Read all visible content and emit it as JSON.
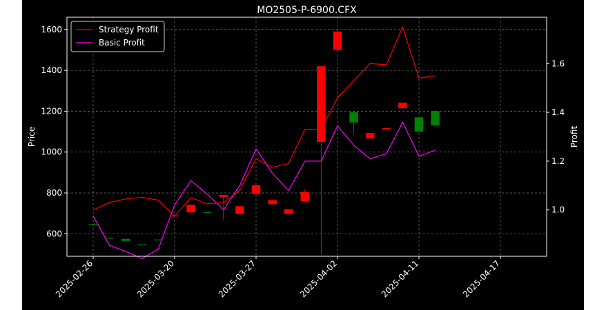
{
  "chart_data": {
    "type": "candlestick",
    "title": "MO2505-P-6900.CFX",
    "xlabel": "",
    "ylabel": "Price",
    "y2label": "Profit",
    "ylim": [
      490,
      1660
    ],
    "y2lim": [
      0.81,
      1.79
    ],
    "yticks": [
      600,
      800,
      1000,
      1200,
      1400,
      1600
    ],
    "y2ticks": [
      1.0,
      1.2,
      1.4,
      1.6
    ],
    "xtick_labels": [
      "2025-02-26",
      "2025-03-20",
      "2025-03-27",
      "2025-04-02",
      "2025-04-11",
      "2025-04-17"
    ],
    "xtick_indices": [
      0,
      5,
      10,
      15,
      20,
      25
    ],
    "grid": true,
    "legend_position": "top-left",
    "colors": {
      "background": "#000000",
      "axes": "#ffffff",
      "text": "#ffffff",
      "up": "#008000",
      "down": "#ff0000",
      "grid": "#6b6b6b",
      "strategy": "#ff0000",
      "basic": "#ff00ff"
    },
    "candles": [
      {
        "open": 648,
        "high": 648,
        "low": 648,
        "close": 648
      },
      {
        "open": 580,
        "high": 580,
        "low": 580,
        "close": 580
      },
      {
        "open": 565,
        "high": 575,
        "low": 562,
        "close": 575
      },
      {
        "open": 548,
        "high": 548,
        "low": 548,
        "close": 548
      },
      {
        "open": 572,
        "high": 572,
        "low": 572,
        "close": 572
      },
      {
        "open": 690,
        "high": 690,
        "low": 685,
        "close": 685
      },
      {
        "open": 742,
        "high": 742,
        "low": 705,
        "close": 705
      },
      {
        "open": 707,
        "high": 707,
        "low": 707,
        "close": 707
      },
      {
        "open": 790,
        "high": 790,
        "low": 670,
        "close": 780
      },
      {
        "open": 735,
        "high": 735,
        "low": 697,
        "close": 697
      },
      {
        "open": 838,
        "high": 838,
        "low": 785,
        "close": 795
      },
      {
        "open": 765,
        "high": 765,
        "low": 745,
        "close": 745
      },
      {
        "open": 720,
        "high": 720,
        "low": 697,
        "close": 697
      },
      {
        "open": 805,
        "high": 820,
        "low": 755,
        "close": 758
      },
      {
        "open": 1420,
        "high": 1420,
        "low": 500,
        "close": 1050
      },
      {
        "open": 1590,
        "high": 1590,
        "low": 1500,
        "close": 1500
      },
      {
        "open": 1145,
        "high": 1200,
        "low": 1090,
        "close": 1195
      },
      {
        "open": 1093,
        "high": 1093,
        "low": 1067,
        "close": 1067
      },
      {
        "open": 1117,
        "high": 1117,
        "low": 1115,
        "close": 1115
      },
      {
        "open": 1242,
        "high": 1242,
        "low": 1215,
        "close": 1215
      },
      {
        "open": 1100,
        "high": 1170,
        "low": 1100,
        "close": 1170
      },
      {
        "open": 1130,
        "high": 1205,
        "low": 1130,
        "close": 1200
      }
    ],
    "series": [
      {
        "name": "Strategy Profit",
        "values": [
          1.0,
          1.03,
          1.045,
          1.052,
          1.04,
          0.975,
          1.05,
          1.025,
          1.03,
          1.08,
          1.21,
          1.175,
          1.19,
          1.33,
          1.33,
          1.46,
          1.53,
          1.6,
          1.595,
          1.75,
          1.54,
          1.55
        ]
      },
      {
        "name": "Basic Profit",
        "values": [
          0.975,
          0.855,
          0.83,
          0.8,
          0.84,
          1.02,
          1.12,
          1.065,
          1.0,
          1.1,
          1.25,
          1.15,
          1.08,
          1.2,
          1.2,
          1.345,
          1.265,
          1.21,
          1.23,
          1.36,
          1.22,
          1.245
        ]
      }
    ]
  }
}
